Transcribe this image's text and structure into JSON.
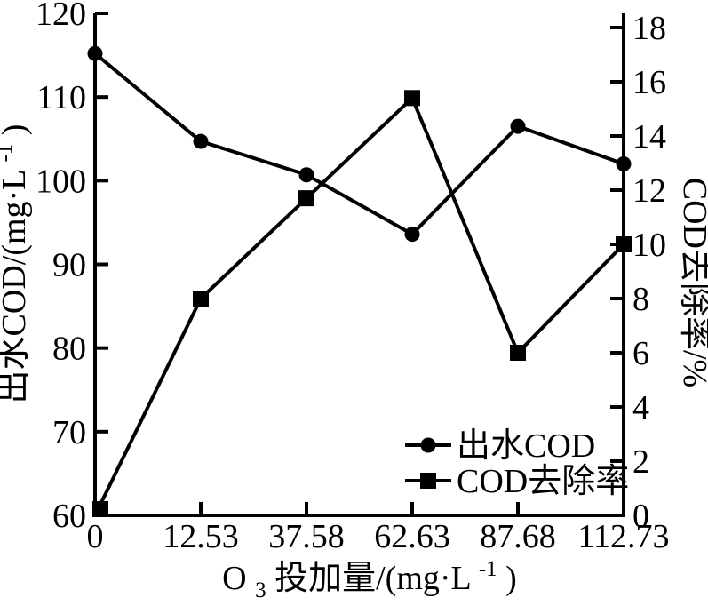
{
  "chart_data": {
    "type": "line",
    "dual_axis": true,
    "x_categories": [
      "0",
      "12.53",
      "37.58",
      "62.63",
      "87.68",
      "112.73"
    ],
    "series": [
      {
        "name": "出水COD",
        "axis": "left",
        "marker": "circle",
        "values": [
          115.2,
          104.7,
          100.7,
          93.6,
          106.5,
          102.0
        ]
      },
      {
        "name": "COD去除率",
        "axis": "right",
        "marker": "square",
        "values": [
          0,
          8.0,
          11.7,
          15.4,
          6.0,
          10.0
        ]
      }
    ],
    "left_axis": {
      "title_main": "出水COD/(mg·L",
      "title_sup": "-1",
      "title_close": ")",
      "range": [
        60,
        120
      ],
      "tick_step": 10,
      "tick_labels": [
        "60",
        "70",
        "80",
        "90",
        "100",
        "110",
        "120"
      ]
    },
    "right_axis": {
      "title": "COD去除率/%",
      "range": [
        0,
        18
      ],
      "tick_step": 2,
      "tick_labels": [
        "0",
        "2",
        "4",
        "6",
        "8",
        "10",
        "12",
        "14",
        "16",
        "18"
      ]
    },
    "x_axis": {
      "title_pre": "O",
      "title_sub": "3",
      "title_main": "投加量/(mg·L",
      "title_sup": "-1",
      "title_close": ")"
    },
    "legend": {
      "position": "inside-lower-right"
    },
    "grid": "off",
    "colors": {
      "foreground": "#000000",
      "background": "#ffffff"
    }
  }
}
